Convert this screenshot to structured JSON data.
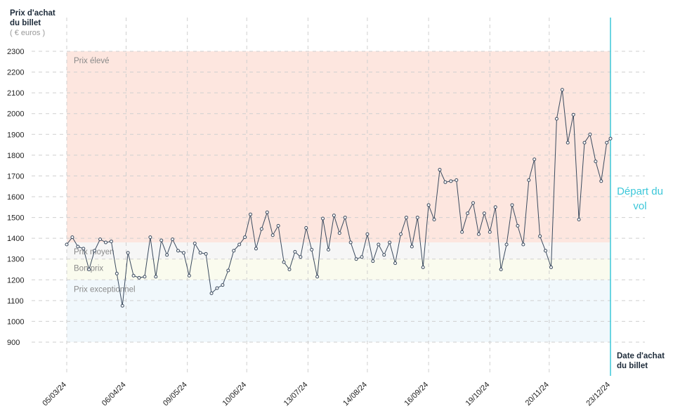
{
  "chart_data": {
    "type": "line",
    "y_axis_label": "Prix d'achat du billet",
    "y_axis_unit": "( € euros )",
    "x_axis_label": "Date d'achat du billet",
    "annotation": "Départ du vol",
    "annotation_color": "#3cc7d9",
    "xlim": [
      "2024-03-05",
      "2024-12-23"
    ],
    "ylim": [
      900,
      2300
    ],
    "yticks": [
      900,
      1000,
      1100,
      1200,
      1300,
      1400,
      1500,
      1600,
      1700,
      1800,
      1900,
      2000,
      2100,
      2200,
      2300
    ],
    "xticks": [
      {
        "value": "2024-03-05",
        "label": "05/03/24"
      },
      {
        "value": "2024-04-06",
        "label": "06/04/24"
      },
      {
        "value": "2024-05-09",
        "label": "09/05/24"
      },
      {
        "value": "2024-06-10",
        "label": "10/06/24"
      },
      {
        "value": "2024-07-13",
        "label": "13/07/24"
      },
      {
        "value": "2024-08-14",
        "label": "14/08/24"
      },
      {
        "value": "2024-09-16",
        "label": "16/09/24"
      },
      {
        "value": "2024-10-19",
        "label": "19/10/24"
      },
      {
        "value": "2024-11-20",
        "label": "20/11/24"
      },
      {
        "value": "2024-12-23",
        "label": "23/12/24"
      }
    ],
    "grid": true,
    "zones": [
      {
        "label": "Prix élevé",
        "from": 1380,
        "to": 2300,
        "color": "#fde6df"
      },
      {
        "label": "Prix moyen",
        "from": 1300,
        "to": 1380,
        "color": "#f6f6f6"
      },
      {
        "label": "Bon prix",
        "from": 1200,
        "to": 1300,
        "color": "#fafbee"
      },
      {
        "label": "Prix exceptionnel",
        "from": 900,
        "to": 1200,
        "color": "#f1f8fc"
      }
    ],
    "x": [
      "2024-03-05",
      "2024-03-08",
      "2024-03-11",
      "2024-03-14",
      "2024-03-17",
      "2024-03-20",
      "2024-03-23",
      "2024-03-26",
      "2024-03-29",
      "2024-04-01",
      "2024-04-04",
      "2024-04-07",
      "2024-04-10",
      "2024-04-13",
      "2024-04-16",
      "2024-04-19",
      "2024-04-22",
      "2024-04-25",
      "2024-04-28",
      "2024-05-01",
      "2024-05-04",
      "2024-05-07",
      "2024-05-10",
      "2024-05-13",
      "2024-05-16",
      "2024-05-19",
      "2024-05-22",
      "2024-05-25",
      "2024-05-28",
      "2024-05-31",
      "2024-06-03",
      "2024-06-06",
      "2024-06-09",
      "2024-06-12",
      "2024-06-15",
      "2024-06-18",
      "2024-06-21",
      "2024-06-24",
      "2024-06-27",
      "2024-06-30",
      "2024-07-03",
      "2024-07-06",
      "2024-07-09",
      "2024-07-12",
      "2024-07-15",
      "2024-07-18",
      "2024-07-21",
      "2024-07-24",
      "2024-07-27",
      "2024-07-30",
      "2024-08-02",
      "2024-08-05",
      "2024-08-08",
      "2024-08-11",
      "2024-08-14",
      "2024-08-17",
      "2024-08-20",
      "2024-08-23",
      "2024-08-26",
      "2024-08-29",
      "2024-09-01",
      "2024-09-04",
      "2024-09-07",
      "2024-09-10",
      "2024-09-13",
      "2024-09-16",
      "2024-09-19",
      "2024-09-22",
      "2024-09-25",
      "2024-09-28",
      "2024-10-01",
      "2024-10-04",
      "2024-10-07",
      "2024-10-10",
      "2024-10-13",
      "2024-10-16",
      "2024-10-19",
      "2024-10-22",
      "2024-10-25",
      "2024-10-28",
      "2024-10-31",
      "2024-11-03",
      "2024-11-06",
      "2024-11-09",
      "2024-11-12",
      "2024-11-15",
      "2024-11-18",
      "2024-11-21",
      "2024-11-24",
      "2024-11-27",
      "2024-11-30",
      "2024-12-03",
      "2024-12-06",
      "2024-12-09",
      "2024-12-12",
      "2024-12-15",
      "2024-12-18",
      "2024-12-21",
      "2024-12-23"
    ],
    "series": [
      {
        "name": "Prix",
        "color": "#3a4a5e",
        "values": [
          1370,
          1405,
          1360,
          1350,
          1250,
          1340,
          1395,
          1380,
          1385,
          1230,
          1075,
          1330,
          1220,
          1210,
          1215,
          1405,
          1215,
          1390,
          1320,
          1395,
          1340,
          1330,
          1220,
          1375,
          1330,
          1325,
          1135,
          1160,
          1175,
          1245,
          1340,
          1370,
          1405,
          1515,
          1350,
          1445,
          1525,
          1415,
          1460,
          1285,
          1250,
          1335,
          1310,
          1450,
          1345,
          1215,
          1495,
          1345,
          1510,
          1425,
          1500,
          1380,
          1300,
          1310,
          1420,
          1290,
          1370,
          1320,
          1380,
          1280,
          1420,
          1500,
          1360,
          1500,
          1260,
          1560,
          1490,
          1730,
          1670,
          1675,
          1680,
          1430,
          1520,
          1570,
          1420,
          1520,
          1430,
          1550,
          1250,
          1370,
          1560,
          1460,
          1370,
          1680,
          1780,
          1410,
          1340,
          1260,
          1975,
          2115,
          1860,
          1995,
          1490,
          1860,
          1900,
          1770,
          1675,
          1860,
          1880
        ]
      }
    ]
  }
}
